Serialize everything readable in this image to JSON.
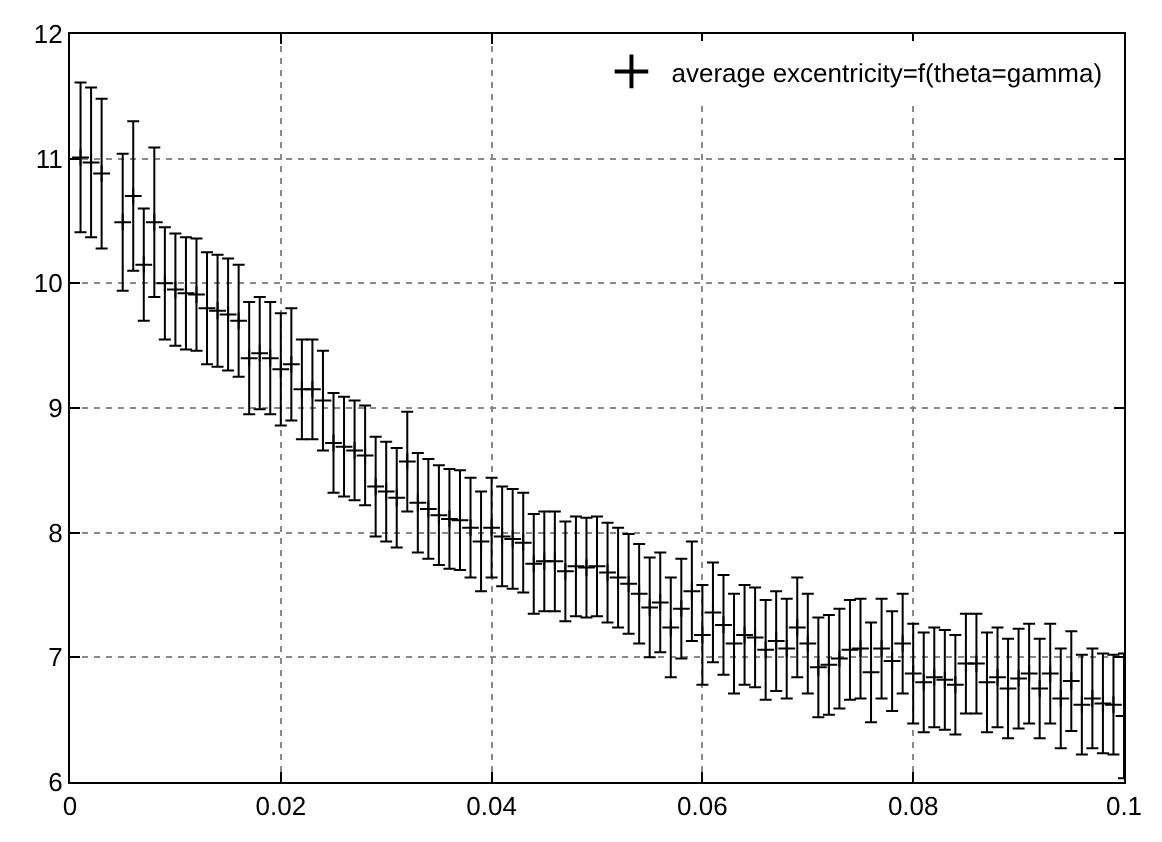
{
  "chart_data": {
    "type": "scatter",
    "x": [
      0.001,
      0.002,
      0.003,
      0.004,
      0.005,
      0.006,
      0.007,
      0.008,
      0.009,
      0.01,
      0.011,
      0.012,
      0.013,
      0.014,
      0.015,
      0.016,
      0.017,
      0.018,
      0.019,
      0.02,
      0.021,
      0.022,
      0.023,
      0.024,
      0.025,
      0.026,
      0.027,
      0.028,
      0.029,
      0.03,
      0.031,
      0.032,
      0.033,
      0.034,
      0.035,
      0.036,
      0.037,
      0.038,
      0.039,
      0.04,
      0.041,
      0.042,
      0.043,
      0.044,
      0.045,
      0.046,
      0.047,
      0.048,
      0.049,
      0.05,
      0.051,
      0.052,
      0.053,
      0.054,
      0.055,
      0.056,
      0.057,
      0.058,
      0.059,
      0.06,
      0.061,
      0.062,
      0.063,
      0.064,
      0.065,
      0.066,
      0.067,
      0.068,
      0.069,
      0.07,
      0.071,
      0.072,
      0.073,
      0.074,
      0.075,
      0.076,
      0.077,
      0.078,
      0.079,
      0.08,
      0.081,
      0.082,
      0.083,
      0.084,
      0.085,
      0.086,
      0.087,
      0.088,
      0.089,
      0.09,
      0.091,
      0.092,
      0.093,
      0.094,
      0.095,
      0.096,
      0.097,
      0.098,
      0.099,
      0.1
    ],
    "series": [
      {
        "name": "average excentricity=f(theta=gamma)",
        "color": "#000000",
        "values": [
          11.01,
          10.97,
          10.88,
          null,
          10.49,
          10.7,
          10.15,
          10.49,
          10.0,
          9.95,
          9.92,
          9.91,
          9.8,
          9.78,
          9.75,
          9.7,
          9.4,
          9.44,
          9.4,
          9.31,
          9.35,
          9.15,
          9.15,
          9.06,
          8.72,
          8.69,
          8.66,
          8.62,
          8.37,
          8.33,
          8.28,
          8.57,
          8.24,
          8.19,
          8.14,
          8.11,
          8.1,
          8.04,
          7.93,
          8.04,
          7.97,
          7.95,
          7.92,
          7.75,
          7.77,
          7.77,
          7.69,
          7.73,
          7.72,
          7.73,
          7.68,
          7.64,
          7.59,
          7.51,
          7.4,
          7.44,
          7.24,
          7.39,
          7.53,
          7.18,
          7.36,
          7.26,
          7.11,
          7.18,
          7.16,
          7.06,
          7.13,
          7.07,
          7.24,
          7.11,
          6.92,
          6.94,
          6.99,
          7.06,
          7.07,
          6.88,
          7.07,
          6.97,
          7.11,
          6.87,
          6.8,
          6.84,
          6.82,
          6.78,
          6.95,
          6.95,
          6.8,
          6.84,
          6.75,
          6.83,
          6.87,
          6.75,
          6.87,
          6.67,
          6.81,
          6.62,
          6.67,
          6.63,
          6.62,
          6.53
        ],
        "errors": [
          0.6,
          0.6,
          0.6,
          null,
          0.55,
          0.6,
          0.45,
          0.6,
          0.45,
          0.45,
          0.45,
          0.45,
          0.45,
          0.45,
          0.45,
          0.45,
          0.45,
          0.45,
          0.45,
          0.45,
          0.45,
          0.4,
          0.4,
          0.4,
          0.4,
          0.4,
          0.4,
          0.4,
          0.4,
          0.4,
          0.4,
          0.4,
          0.4,
          0.4,
          0.4,
          0.4,
          0.4,
          0.4,
          0.4,
          0.4,
          0.4,
          0.4,
          0.4,
          0.4,
          0.4,
          0.4,
          0.4,
          0.4,
          0.4,
          0.4,
          0.4,
          0.4,
          0.4,
          0.4,
          0.4,
          0.4,
          0.4,
          0.4,
          0.4,
          0.4,
          0.4,
          0.4,
          0.4,
          0.4,
          0.4,
          0.4,
          0.4,
          0.4,
          0.4,
          0.4,
          0.4,
          0.4,
          0.4,
          0.4,
          0.4,
          0.4,
          0.4,
          0.4,
          0.4,
          0.4,
          0.4,
          0.4,
          0.4,
          0.4,
          0.4,
          0.4,
          0.4,
          0.4,
          0.4,
          0.4,
          0.4,
          0.4,
          0.4,
          0.4,
          0.4,
          0.4,
          0.4,
          0.4,
          0.4,
          0.5
        ]
      }
    ],
    "xlim": [
      0,
      0.1
    ],
    "xticks": [
      0,
      0.02,
      0.04,
      0.06,
      0.08,
      0.1
    ],
    "ylim": [
      6,
      12
    ],
    "yticks": [
      6,
      7,
      8,
      9,
      10,
      11,
      12
    ],
    "grid": true,
    "legend": "top right",
    "marker": "cross"
  }
}
